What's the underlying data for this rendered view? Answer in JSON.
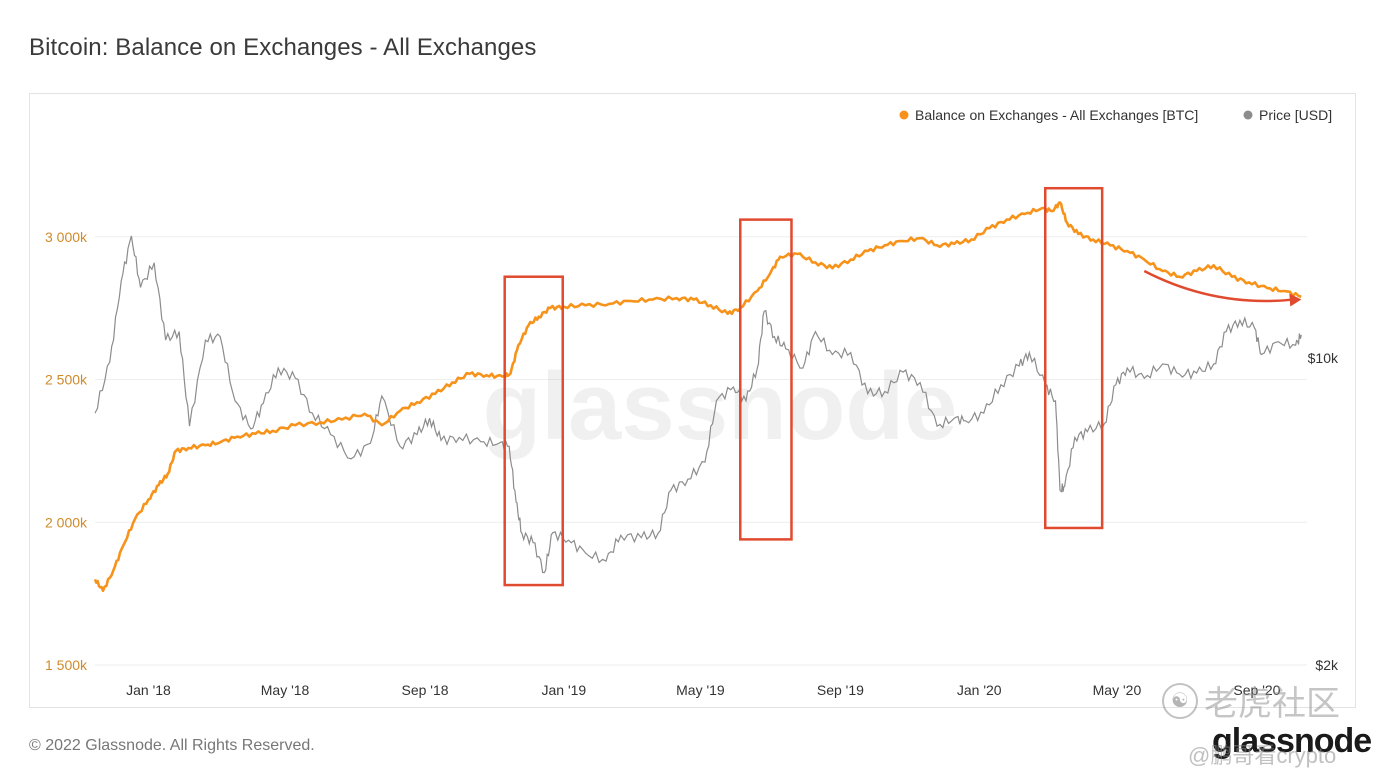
{
  "title": "Bitcoin: Balance on Exchanges - All Exchanges",
  "copyright": "© 2022 Glassnode. All Rights Reserved.",
  "brand_logo": "glassnode",
  "chart_watermark": "glassnode",
  "overlay_watermark": {
    "icon": "paw-icon",
    "text": "老虎社区",
    "handle": "@鹏哥看crypto"
  },
  "colors": {
    "balance": "#F7931A",
    "price": "#8C8C8C",
    "highlight": "#E04A2F",
    "grid": "#EEEEEE",
    "y_left_tick": "#D08A2A",
    "axis_text": "#333333"
  },
  "chart_data": {
    "type": "line",
    "title": "Bitcoin: Balance on Exchanges - All Exchanges",
    "legend": {
      "placement": "top-right",
      "entries": [
        {
          "label": "Balance on Exchanges - All Exchanges [BTC]",
          "color": "#F7931A"
        },
        {
          "label": "Price [USD]",
          "color": "#8C8C8C"
        }
      ]
    },
    "x_axis": {
      "start": "2017-11-15",
      "end": "2020-10-15",
      "ticks": [
        {
          "date": "2018-01-01",
          "label": "Jan '18"
        },
        {
          "date": "2018-05-01",
          "label": "May '18"
        },
        {
          "date": "2018-09-01",
          "label": "Sep '18"
        },
        {
          "date": "2019-01-01",
          "label": "Jan '19"
        },
        {
          "date": "2019-05-01",
          "label": "May '19"
        },
        {
          "date": "2019-09-01",
          "label": "Sep '19"
        },
        {
          "date": "2020-01-01",
          "label": "Jan '20"
        },
        {
          "date": "2020-05-01",
          "label": "May '20"
        },
        {
          "date": "2020-09-01",
          "label": "Sep '20"
        }
      ]
    },
    "y_left": {
      "unit": "BTC",
      "range": [
        1500000,
        3500000
      ],
      "ticks": [
        {
          "value": 1500000,
          "label": "1 500k"
        },
        {
          "value": 2000000,
          "label": "2 000k"
        },
        {
          "value": 2500000,
          "label": "2 500k"
        },
        {
          "value": 3000000,
          "label": "3 000k"
        }
      ]
    },
    "y_right": {
      "unit": "USD",
      "scale": "log",
      "range": [
        2000,
        40000
      ],
      "ticks": [
        {
          "value": 2000,
          "label": "$2k"
        },
        {
          "value": 10000,
          "label": "$10k"
        }
      ]
    },
    "grid": true,
    "series": [
      {
        "name": "Balance on Exchanges - All Exchanges [BTC]",
        "axis": "left",
        "points": [
          [
            "2017-11-15",
            1800000
          ],
          [
            "2017-11-22",
            1760000
          ],
          [
            "2017-12-01",
            1830000
          ],
          [
            "2017-12-10",
            1920000
          ],
          [
            "2017-12-20",
            2010000
          ],
          [
            "2018-01-01",
            2080000
          ],
          [
            "2018-01-10",
            2130000
          ],
          [
            "2018-01-18",
            2170000
          ],
          [
            "2018-01-25",
            2250000
          ],
          [
            "2018-02-05",
            2260000
          ],
          [
            "2018-02-20",
            2270000
          ],
          [
            "2018-03-05",
            2280000
          ],
          [
            "2018-03-20",
            2300000
          ],
          [
            "2018-04-05",
            2310000
          ],
          [
            "2018-04-20",
            2320000
          ],
          [
            "2018-05-10",
            2340000
          ],
          [
            "2018-06-01",
            2350000
          ],
          [
            "2018-06-20",
            2360000
          ],
          [
            "2018-07-10",
            2380000
          ],
          [
            "2018-07-25",
            2340000
          ],
          [
            "2018-08-10",
            2390000
          ],
          [
            "2018-08-25",
            2420000
          ],
          [
            "2018-09-10",
            2450000
          ],
          [
            "2018-09-25",
            2490000
          ],
          [
            "2018-10-10",
            2520000
          ],
          [
            "2018-10-25",
            2515000
          ],
          [
            "2018-11-08",
            2510000
          ],
          [
            "2018-11-15",
            2520000
          ],
          [
            "2018-11-22",
            2620000
          ],
          [
            "2018-12-01",
            2690000
          ],
          [
            "2018-12-10",
            2720000
          ],
          [
            "2018-12-20",
            2750000
          ],
          [
            "2019-01-01",
            2755000
          ],
          [
            "2019-01-20",
            2760000
          ],
          [
            "2019-02-10",
            2765000
          ],
          [
            "2019-03-01",
            2775000
          ],
          [
            "2019-03-20",
            2780000
          ],
          [
            "2019-04-10",
            2785000
          ],
          [
            "2019-04-25",
            2780000
          ],
          [
            "2019-05-10",
            2760000
          ],
          [
            "2019-05-25",
            2730000
          ],
          [
            "2019-06-05",
            2750000
          ],
          [
            "2019-06-20",
            2810000
          ],
          [
            "2019-07-01",
            2870000
          ],
          [
            "2019-07-10",
            2930000
          ],
          [
            "2019-07-25",
            2940000
          ],
          [
            "2019-08-10",
            2910000
          ],
          [
            "2019-08-25",
            2890000
          ],
          [
            "2019-09-10",
            2920000
          ],
          [
            "2019-09-25",
            2950000
          ],
          [
            "2019-10-10",
            2970000
          ],
          [
            "2019-10-25",
            2985000
          ],
          [
            "2019-11-10",
            2995000
          ],
          [
            "2019-11-25",
            2970000
          ],
          [
            "2019-12-10",
            2975000
          ],
          [
            "2019-12-25",
            2990000
          ],
          [
            "2020-01-10",
            3030000
          ],
          [
            "2020-01-25",
            3060000
          ],
          [
            "2020-02-10",
            3080000
          ],
          [
            "2020-02-25",
            3100000
          ],
          [
            "2020-03-05",
            3090000
          ],
          [
            "2020-03-12",
            3120000
          ],
          [
            "2020-03-18",
            3050000
          ],
          [
            "2020-03-28",
            3010000
          ],
          [
            "2020-04-10",
            2990000
          ],
          [
            "2020-04-25",
            2970000
          ],
          [
            "2020-05-10",
            2950000
          ],
          [
            "2020-05-25",
            2920000
          ],
          [
            "2020-06-10",
            2880000
          ],
          [
            "2020-06-25",
            2860000
          ],
          [
            "2020-07-10",
            2880000
          ],
          [
            "2020-07-25",
            2900000
          ],
          [
            "2020-08-10",
            2860000
          ],
          [
            "2020-08-25",
            2840000
          ],
          [
            "2020-09-10",
            2820000
          ],
          [
            "2020-09-25",
            2810000
          ],
          [
            "2020-10-10",
            2790000
          ]
        ]
      },
      {
        "name": "Price [USD]",
        "axis": "right",
        "points": [
          [
            "2017-11-15",
            7500
          ],
          [
            "2017-11-28",
            9800
          ],
          [
            "2017-12-08",
            15000
          ],
          [
            "2017-12-17",
            19000
          ],
          [
            "2017-12-25",
            14500
          ],
          [
            "2018-01-06",
            16500
          ],
          [
            "2018-01-16",
            11000
          ],
          [
            "2018-01-28",
            11500
          ],
          [
            "2018-02-06",
            7000
          ],
          [
            "2018-02-20",
            11000
          ],
          [
            "2018-03-05",
            11200
          ],
          [
            "2018-03-18",
            8000
          ],
          [
            "2018-04-01",
            6900
          ],
          [
            "2018-04-12",
            7900
          ],
          [
            "2018-04-25",
            9500
          ],
          [
            "2018-05-10",
            9000
          ],
          [
            "2018-05-25",
            7500
          ],
          [
            "2018-06-10",
            6700
          ],
          [
            "2018-06-28",
            5900
          ],
          [
            "2018-07-15",
            6400
          ],
          [
            "2018-07-25",
            8200
          ],
          [
            "2018-08-10",
            6300
          ],
          [
            "2018-08-25",
            6700
          ],
          [
            "2018-09-05",
            7300
          ],
          [
            "2018-09-15",
            6500
          ],
          [
            "2018-10-01",
            6600
          ],
          [
            "2018-10-20",
            6450
          ],
          [
            "2018-11-05",
            6400
          ],
          [
            "2018-11-14",
            6300
          ],
          [
            "2018-11-20",
            4700
          ],
          [
            "2018-11-25",
            4000
          ],
          [
            "2018-12-05",
            3800
          ],
          [
            "2018-12-15",
            3250
          ],
          [
            "2018-12-22",
            4000
          ],
          [
            "2019-01-05",
            3850
          ],
          [
            "2019-01-20",
            3600
          ],
          [
            "2019-02-07",
            3450
          ],
          [
            "2019-02-20",
            3950
          ],
          [
            "2019-03-10",
            3900
          ],
          [
            "2019-03-25",
            4000
          ],
          [
            "2019-04-05",
            5000
          ],
          [
            "2019-04-20",
            5300
          ],
          [
            "2019-05-05",
            5800
          ],
          [
            "2019-05-15",
            8000
          ],
          [
            "2019-05-30",
            8600
          ],
          [
            "2019-06-10",
            8000
          ],
          [
            "2019-06-20",
            9500
          ],
          [
            "2019-06-26",
            12800
          ],
          [
            "2019-07-05",
            11200
          ],
          [
            "2019-07-15",
            10500
          ],
          [
            "2019-07-30",
            9500
          ],
          [
            "2019-08-10",
            11500
          ],
          [
            "2019-08-25",
            10200
          ],
          [
            "2019-09-10",
            10300
          ],
          [
            "2019-09-25",
            8300
          ],
          [
            "2019-10-10",
            8400
          ],
          [
            "2019-10-26",
            9300
          ],
          [
            "2019-11-10",
            8800
          ],
          [
            "2019-11-25",
            7000
          ],
          [
            "2019-12-10",
            7300
          ],
          [
            "2019-12-20",
            7200
          ],
          [
            "2020-01-05",
            7500
          ],
          [
            "2020-01-20",
            8700
          ],
          [
            "2020-02-05",
            9600
          ],
          [
            "2020-02-14",
            10300
          ],
          [
            "2020-02-28",
            8700
          ],
          [
            "2020-03-08",
            8000
          ],
          [
            "2020-03-12",
            5000
          ],
          [
            "2020-03-16",
            5100
          ],
          [
            "2020-03-25",
            6600
          ],
          [
            "2020-04-05",
            6800
          ],
          [
            "2020-04-20",
            7100
          ],
          [
            "2020-04-30",
            8700
          ],
          [
            "2020-05-10",
            9500
          ],
          [
            "2020-05-25",
            9000
          ],
          [
            "2020-06-10",
            9700
          ],
          [
            "2020-06-25",
            9200
          ],
          [
            "2020-07-10",
            9250
          ],
          [
            "2020-07-25",
            9700
          ],
          [
            "2020-08-05",
            11500
          ],
          [
            "2020-08-17",
            12200
          ],
          [
            "2020-08-30",
            11700
          ],
          [
            "2020-09-05",
            10200
          ],
          [
            "2020-09-20",
            10900
          ],
          [
            "2020-10-05",
            10700
          ],
          [
            "2020-10-10",
            11300
          ]
        ]
      }
    ],
    "annotations": [
      {
        "type": "rect",
        "x_start": "2018-11-10",
        "x_end": "2018-12-31",
        "y_value_range": [
          1780000,
          2860000
        ]
      },
      {
        "type": "rect",
        "x_start": "2019-06-05",
        "x_end": "2019-07-20",
        "y_value_range": [
          1940000,
          3060000
        ]
      },
      {
        "type": "rect",
        "x_start": "2020-02-28",
        "x_end": "2020-04-18",
        "y_value_range": [
          1980000,
          3170000
        ]
      },
      {
        "type": "arrow",
        "x_start": "2020-05-25",
        "x_end": "2020-10-10",
        "y_start": 2880000,
        "y_end": 2780000
      }
    ]
  }
}
